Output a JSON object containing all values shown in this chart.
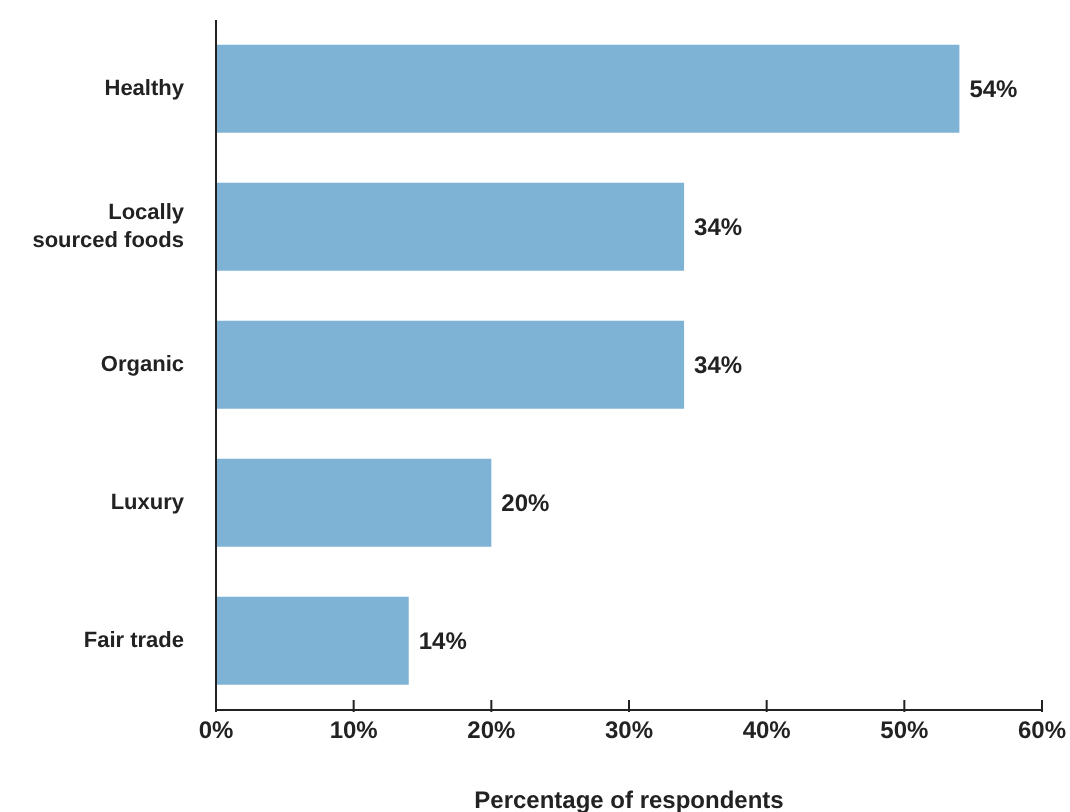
{
  "chart_data": {
    "type": "bar",
    "orientation": "horizontal",
    "categories": [
      "Healthy",
      "Locally sourced foods",
      "Organic",
      "Luxury",
      "Fair trade"
    ],
    "values": [
      54,
      34,
      34,
      20,
      14
    ],
    "color": "#7fb3d5",
    "value_labels": [
      "54%",
      "34%",
      "34%",
      "20%",
      "14%"
    ],
    "xlabel": "Percentage of respondents",
    "xlim": [
      0,
      60
    ],
    "xticks": [
      {
        "value": 0,
        "label": "0%"
      },
      {
        "value": 10,
        "label": "10%"
      },
      {
        "value": 20,
        "label": "20%"
      },
      {
        "value": 30,
        "label": "30%"
      },
      {
        "value": 40,
        "label": "40%"
      },
      {
        "value": 50,
        "label": "50%"
      },
      {
        "value": 60,
        "label": "60%"
      }
    ],
    "grid": false,
    "legend": false
  }
}
